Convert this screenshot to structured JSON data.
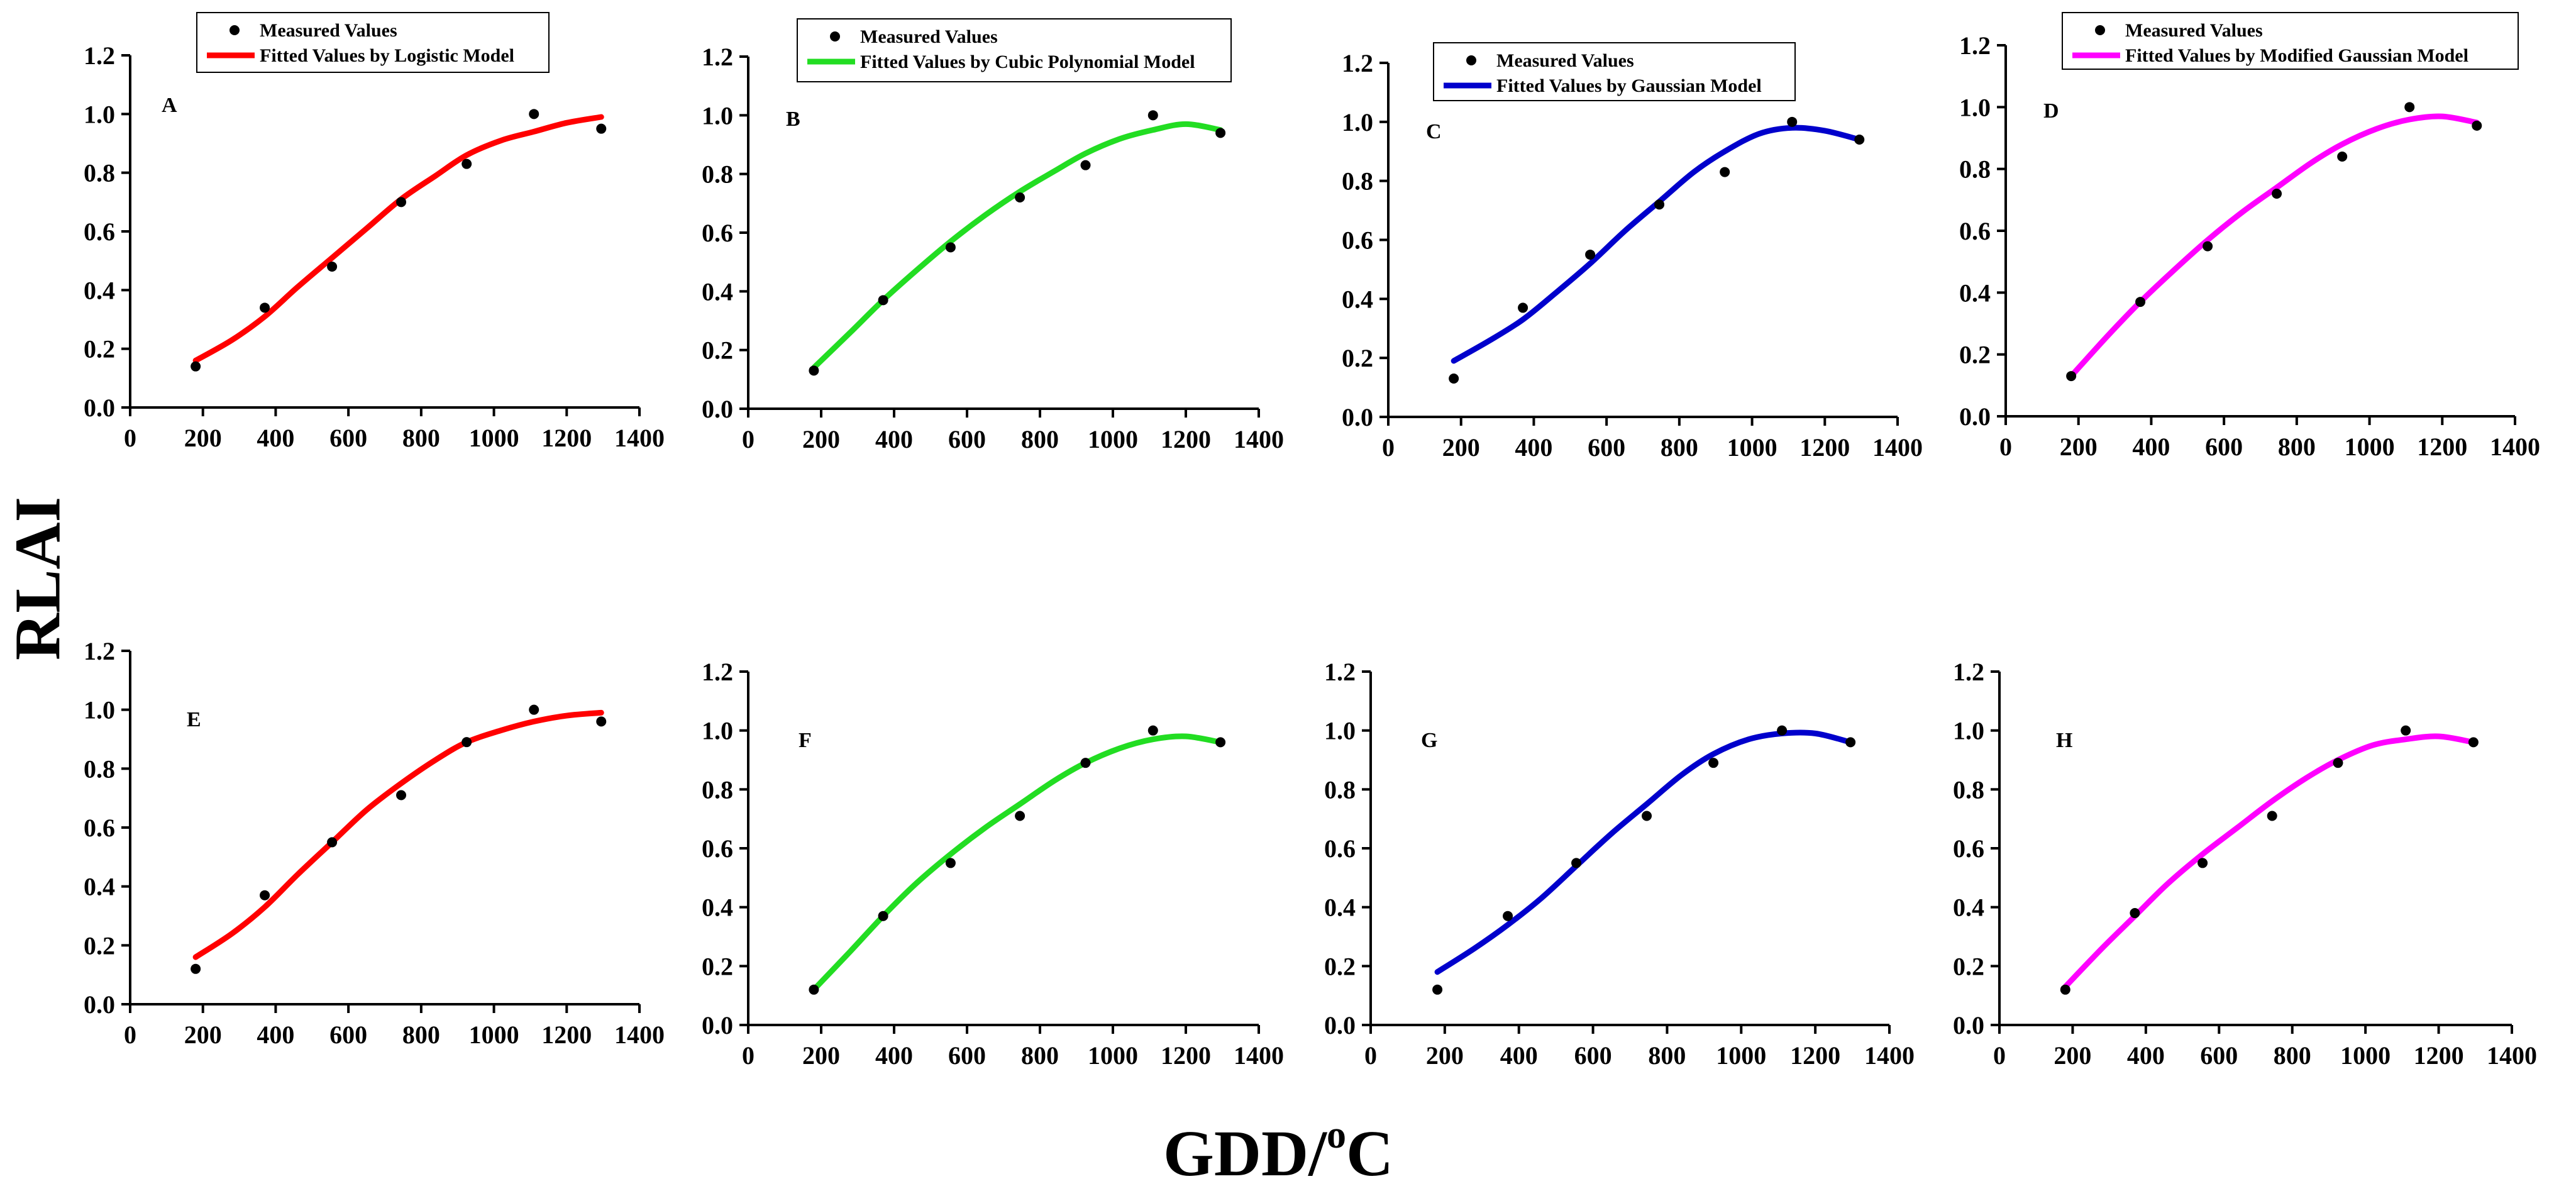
{
  "figure": {
    "y_axis_label": "RLAI",
    "x_axis_label_main": "GDD/",
    "x_axis_label_sup": "o",
    "x_axis_label_unit": "C"
  },
  "chart_data": [
    {
      "type": "scatter",
      "panel": "A",
      "model": "Logistic",
      "line_color": "#ff0000",
      "legend": [
        "Measured Values",
        "Fitted Values by Logistic Model"
      ],
      "xlim": [
        0,
        1400
      ],
      "ylim": [
        0,
        1.2
      ],
      "xticks": [
        0,
        200,
        400,
        600,
        800,
        1000,
        1200,
        1400
      ],
      "yticks": [
        0.0,
        0.2,
        0.4,
        0.6,
        0.8,
        1.0,
        1.2
      ],
      "ytick_labels": [
        "0.0",
        "0.2",
        "0.4",
        "0.6",
        "0.8",
        "1.0",
        "1.2"
      ],
      "measured": {
        "x": [
          180,
          370,
          555,
          745,
          925,
          1110,
          1295
        ],
        "y": [
          0.14,
          0.34,
          0.48,
          0.7,
          0.83,
          1.0,
          0.95
        ]
      },
      "fitted": {
        "x": [
          180,
          280,
          370,
          460,
          555,
          650,
          745,
          840,
          925,
          1020,
          1110,
          1200,
          1295
        ],
        "y": [
          0.16,
          0.23,
          0.31,
          0.41,
          0.51,
          0.61,
          0.71,
          0.79,
          0.86,
          0.91,
          0.94,
          0.97,
          0.99
        ]
      }
    },
    {
      "type": "scatter",
      "panel": "B",
      "model": "Cubic Polynomial",
      "line_color": "#22dd22",
      "legend": [
        "Measured Values",
        "Fitted Values by Cubic Polynomial Model"
      ],
      "xlim": [
        0,
        1400
      ],
      "ylim": [
        0,
        1.2
      ],
      "xticks": [
        0,
        200,
        400,
        600,
        800,
        1000,
        1200,
        1400
      ],
      "yticks": [
        0.0,
        0.2,
        0.4,
        0.6,
        0.8,
        1.0,
        1.2
      ],
      "ytick_labels": [
        "0.0",
        "0.2",
        "0.4",
        "0.6",
        "0.8",
        "1.0",
        "1.2"
      ],
      "measured": {
        "x": [
          180,
          370,
          555,
          745,
          925,
          1110,
          1295
        ],
        "y": [
          0.13,
          0.37,
          0.55,
          0.72,
          0.83,
          1.0,
          0.94
        ]
      },
      "fitted": {
        "x": [
          180,
          280,
          370,
          460,
          555,
          650,
          745,
          840,
          925,
          1020,
          1110,
          1200,
          1295
        ],
        "y": [
          0.14,
          0.26,
          0.37,
          0.47,
          0.57,
          0.66,
          0.74,
          0.81,
          0.87,
          0.92,
          0.95,
          0.97,
          0.95
        ]
      }
    },
    {
      "type": "scatter",
      "panel": "C",
      "model": "Gaussian",
      "line_color": "#0000cc",
      "legend": [
        "Measured Values",
        "Fitted Values by Gaussian Model"
      ],
      "xlim": [
        0,
        1400
      ],
      "ylim": [
        0,
        1.2
      ],
      "xticks": [
        0,
        200,
        400,
        600,
        800,
        1000,
        1200,
        1400
      ],
      "yticks": [
        0.0,
        0.2,
        0.4,
        0.6,
        0.8,
        1.0,
        1.2
      ],
      "ytick_labels": [
        "0.0",
        "0.2",
        "0.4",
        "0.6",
        "0.8",
        "1.0",
        "1.2"
      ],
      "measured": {
        "x": [
          180,
          370,
          555,
          745,
          925,
          1110,
          1295
        ],
        "y": [
          0.13,
          0.37,
          0.55,
          0.72,
          0.83,
          1.0,
          0.94
        ]
      },
      "fitted": {
        "x": [
          180,
          280,
          370,
          460,
          555,
          650,
          745,
          840,
          925,
          1020,
          1110,
          1200,
          1295
        ],
        "y": [
          0.19,
          0.26,
          0.33,
          0.42,
          0.52,
          0.63,
          0.73,
          0.83,
          0.9,
          0.96,
          0.98,
          0.97,
          0.94
        ]
      }
    },
    {
      "type": "scatter",
      "panel": "D",
      "model": "Modified Gaussian",
      "line_color": "#ff00ff",
      "legend": [
        "Measured Values",
        "Fitted Values by Modified Gaussian Model"
      ],
      "xlim": [
        0,
        1400
      ],
      "ylim": [
        0,
        1.2
      ],
      "xticks": [
        0,
        200,
        400,
        600,
        800,
        1000,
        1200,
        1400
      ],
      "yticks": [
        0.0,
        0.2,
        0.4,
        0.6,
        0.8,
        1.0,
        1.2
      ],
      "ytick_labels": [
        "0.0",
        "0.2",
        "0.4",
        "0.6",
        "0.8",
        "1.0",
        "1.2"
      ],
      "measured": {
        "x": [
          180,
          370,
          555,
          745,
          925,
          1110,
          1295
        ],
        "y": [
          0.13,
          0.37,
          0.55,
          0.72,
          0.84,
          1.0,
          0.94
        ]
      },
      "fitted": {
        "x": [
          180,
          280,
          370,
          460,
          555,
          650,
          745,
          840,
          925,
          1020,
          1110,
          1200,
          1295
        ],
        "y": [
          0.13,
          0.26,
          0.37,
          0.47,
          0.57,
          0.66,
          0.74,
          0.82,
          0.88,
          0.93,
          0.96,
          0.97,
          0.95
        ]
      }
    },
    {
      "type": "scatter",
      "panel": "E",
      "model": "Logistic",
      "line_color": "#ff0000",
      "legend": [],
      "xlim": [
        0,
        1400
      ],
      "ylim": [
        0,
        1.2
      ],
      "xticks": [
        0,
        200,
        400,
        600,
        800,
        1000,
        1200,
        1400
      ],
      "yticks": [
        0.0,
        0.2,
        0.4,
        0.6,
        0.8,
        1.0,
        1.2
      ],
      "ytick_labels": [
        "0.0",
        "0.2",
        "0.4",
        "0.6",
        "0.8",
        "1.0",
        "1.2"
      ],
      "measured": {
        "x": [
          180,
          370,
          555,
          745,
          925,
          1110,
          1295
        ],
        "y": [
          0.12,
          0.37,
          0.55,
          0.71,
          0.89,
          1.0,
          0.96
        ]
      },
      "fitted": {
        "x": [
          180,
          280,
          370,
          460,
          555,
          650,
          745,
          840,
          925,
          1020,
          1110,
          1200,
          1295
        ],
        "y": [
          0.16,
          0.24,
          0.33,
          0.44,
          0.55,
          0.66,
          0.75,
          0.83,
          0.89,
          0.93,
          0.96,
          0.98,
          0.99
        ]
      }
    },
    {
      "type": "scatter",
      "panel": "F",
      "model": "Cubic Polynomial",
      "line_color": "#22dd22",
      "legend": [],
      "xlim": [
        0,
        1400
      ],
      "ylim": [
        0,
        1.2
      ],
      "xticks": [
        0,
        200,
        400,
        600,
        800,
        1000,
        1200,
        1400
      ],
      "yticks": [
        0.0,
        0.2,
        0.4,
        0.6,
        0.8,
        1.0,
        1.2
      ],
      "ytick_labels": [
        "0.0",
        "0.2",
        "0.4",
        "0.6",
        "0.8",
        "1.0",
        "1.2"
      ],
      "measured": {
        "x": [
          180,
          370,
          555,
          745,
          925,
          1110,
          1295
        ],
        "y": [
          0.12,
          0.37,
          0.55,
          0.71,
          0.89,
          1.0,
          0.96
        ]
      },
      "fitted": {
        "x": [
          180,
          280,
          370,
          460,
          555,
          650,
          745,
          840,
          925,
          1020,
          1110,
          1200,
          1295
        ],
        "y": [
          0.12,
          0.25,
          0.37,
          0.48,
          0.58,
          0.67,
          0.75,
          0.83,
          0.89,
          0.94,
          0.97,
          0.98,
          0.96
        ]
      }
    },
    {
      "type": "scatter",
      "panel": "G",
      "model": "Gaussian",
      "line_color": "#0000cc",
      "legend": [],
      "xlim": [
        0,
        1400
      ],
      "ylim": [
        0,
        1.2
      ],
      "xticks": [
        0,
        200,
        400,
        600,
        800,
        1000,
        1200,
        1400
      ],
      "yticks": [
        0.0,
        0.2,
        0.4,
        0.6,
        0.8,
        1.0,
        1.2
      ],
      "ytick_labels": [
        "0.0",
        "0.2",
        "0.4",
        "0.6",
        "0.8",
        "1.0",
        "1.2"
      ],
      "measured": {
        "x": [
          180,
          370,
          555,
          745,
          925,
          1110,
          1295
        ],
        "y": [
          0.12,
          0.37,
          0.55,
          0.71,
          0.89,
          1.0,
          0.96
        ]
      },
      "fitted": {
        "x": [
          180,
          280,
          370,
          460,
          555,
          650,
          745,
          840,
          925,
          1020,
          1110,
          1200,
          1295
        ],
        "y": [
          0.18,
          0.26,
          0.34,
          0.43,
          0.54,
          0.65,
          0.75,
          0.85,
          0.92,
          0.97,
          0.99,
          0.99,
          0.96
        ]
      }
    },
    {
      "type": "scatter",
      "panel": "H",
      "model": "Modified Gaussian",
      "line_color": "#ff00ff",
      "legend": [],
      "xlim": [
        0,
        1400
      ],
      "ylim": [
        0,
        1.2
      ],
      "xticks": [
        0,
        200,
        400,
        600,
        800,
        1000,
        1200,
        1400
      ],
      "yticks": [
        0.0,
        0.2,
        0.4,
        0.6,
        0.8,
        1.0,
        1.2
      ],
      "ytick_labels": [
        "0.0",
        "0.2",
        "0.4",
        "0.6",
        "0.8",
        "1.0",
        "1.2"
      ],
      "measured": {
        "x": [
          180,
          370,
          555,
          745,
          925,
          1110,
          1295
        ],
        "y": [
          0.12,
          0.38,
          0.55,
          0.71,
          0.89,
          1.0,
          0.96
        ]
      },
      "fitted": {
        "x": [
          180,
          280,
          370,
          460,
          555,
          650,
          745,
          840,
          925,
          1020,
          1110,
          1200,
          1295
        ],
        "y": [
          0.13,
          0.26,
          0.37,
          0.48,
          0.58,
          0.67,
          0.76,
          0.84,
          0.9,
          0.95,
          0.97,
          0.98,
          0.96
        ]
      }
    }
  ]
}
